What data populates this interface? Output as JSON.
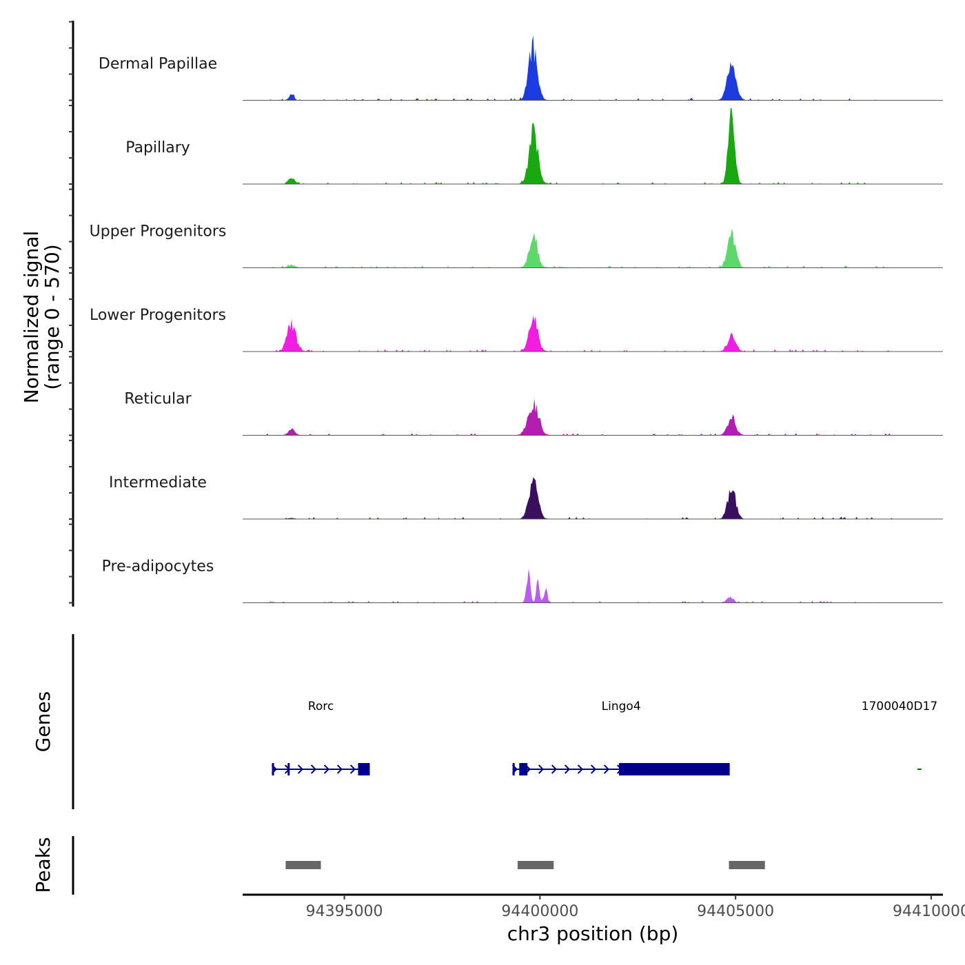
{
  "chart_data": {
    "type": "area",
    "title": "",
    "ylabel": "Normalized signal",
    "ylabel_range": "(range 0 - 570)",
    "ylim": [
      0,
      570
    ],
    "xlabel": "chr3 position (bp)",
    "xlim": [
      94392400,
      94410300
    ],
    "xticks": [
      94395000,
      94400000,
      94405000,
      94410000
    ],
    "xtick_labels": [
      "94395000",
      "94400000",
      "94405000",
      "94410000"
    ],
    "tracks": [
      {
        "name": "Dermal Papillae",
        "color": "#1c3be0",
        "peaks": [
          {
            "pos": 94393650,
            "height": 60,
            "width": 60
          },
          {
            "pos": 94399820,
            "height": 570,
            "width": 110
          },
          {
            "pos": 94404900,
            "height": 380,
            "width": 110
          }
        ]
      },
      {
        "name": "Papillary",
        "color": "#19a80f",
        "peaks": [
          {
            "pos": 94393650,
            "height": 70,
            "width": 80
          },
          {
            "pos": 94399830,
            "height": 570,
            "width": 110
          },
          {
            "pos": 94404900,
            "height": 800,
            "width": 80
          }
        ]
      },
      {
        "name": "Upper Progenitors",
        "color": "#5ed86a",
        "peaks": [
          {
            "pos": 94393650,
            "height": 30,
            "width": 80
          },
          {
            "pos": 94399830,
            "height": 380,
            "width": 100
          },
          {
            "pos": 94404900,
            "height": 370,
            "width": 100
          }
        ]
      },
      {
        "name": "Lower Progenitors",
        "color": "#f21de2",
        "peaks": [
          {
            "pos": 94393650,
            "height": 300,
            "width": 110
          },
          {
            "pos": 94399830,
            "height": 360,
            "width": 110
          },
          {
            "pos": 94404900,
            "height": 180,
            "width": 100
          }
        ]
      },
      {
        "name": "Reticular",
        "color": "#b31db0",
        "peaks": [
          {
            "pos": 94393650,
            "height": 60,
            "width": 80
          },
          {
            "pos": 94399830,
            "height": 340,
            "width": 130
          },
          {
            "pos": 94404900,
            "height": 200,
            "width": 100
          }
        ]
      },
      {
        "name": "Intermediate",
        "color": "#3a0f5e",
        "peaks": [
          {
            "pos": 94393650,
            "height": 10,
            "width": 80
          },
          {
            "pos": 94399830,
            "height": 420,
            "width": 110
          },
          {
            "pos": 94404900,
            "height": 340,
            "width": 100
          }
        ]
      },
      {
        "name": "Pre-adipocytes",
        "color": "#b95cf2",
        "peaks": [
          {
            "pos": 94399700,
            "height": 330,
            "width": 50
          },
          {
            "pos": 94399950,
            "height": 260,
            "width": 40
          },
          {
            "pos": 94400150,
            "height": 140,
            "width": 40
          },
          {
            "pos": 94404850,
            "height": 60,
            "width": 80
          }
        ]
      }
    ],
    "genes_panel_label": "Genes",
    "genes": [
      {
        "name": "Rorc",
        "start": 94393150,
        "end": 94395650,
        "strand": "+",
        "color": "#00008b",
        "exons": [
          [
            94393150,
            94393200
          ],
          [
            94393550,
            94393600
          ],
          [
            94395350,
            94395650
          ]
        ]
      },
      {
        "name": "Lingo4",
        "start": 94399300,
        "end": 94404850,
        "strand": "+",
        "color": "#00008b",
        "exons": [
          [
            94399300,
            94399350
          ],
          [
            94399470,
            94399680
          ],
          [
            94402020,
            94404850
          ]
        ]
      },
      {
        "name": "1700040D17",
        "start": 94409650,
        "end": 94409750,
        "strand": "-",
        "color": "#006400",
        "exons": []
      }
    ],
    "peaks_panel_label": "Peaks",
    "peak_regions": [
      [
        94393500,
        94394400
      ],
      [
        94399430,
        94400350
      ],
      [
        94404830,
        94405750
      ]
    ]
  }
}
